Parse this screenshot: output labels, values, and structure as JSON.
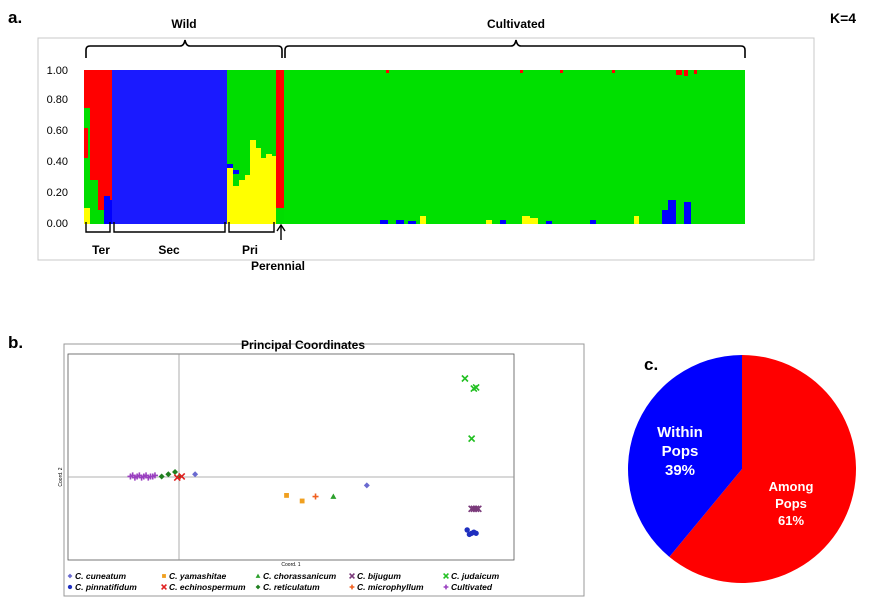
{
  "panels": {
    "a": "a.",
    "b": "b.",
    "c": "c."
  },
  "structure": {
    "k_label": "K=4",
    "group_wild": "Wild",
    "group_cultivated": "Cultivated",
    "sub_ter": "Ter",
    "sub_sec": "Sec",
    "sub_pri": "Pri",
    "sub_perennial": "Perennial",
    "yticks": [
      "0.00",
      "0.20",
      "0.40",
      "0.60",
      "0.80",
      "1.00"
    ]
  },
  "pcoa": {
    "title": "Principal Coordinates",
    "xlabel": "Coord. 1",
    "ylabel": "Coord. 2",
    "legend": [
      {
        "label": "C. cuneatum",
        "color": "#6a6ad0",
        "marker": "diamond"
      },
      {
        "label": "C. yamashitae",
        "color": "#f0a020",
        "marker": "square"
      },
      {
        "label": "C. chorassanicum",
        "color": "#2ca02c",
        "marker": "triangle"
      },
      {
        "label": "C. bijugum",
        "color": "#7a3a7a",
        "marker": "x"
      },
      {
        "label": "C. judaicum",
        "color": "#22c022",
        "marker": "x"
      },
      {
        "label": "C. pinnatifidum",
        "color": "#1f2fbf",
        "marker": "circle"
      },
      {
        "label": "C. echinospermum",
        "color": "#e02020",
        "marker": "x"
      },
      {
        "label": "C. reticulatum",
        "color": "#1f7f1f",
        "marker": "diamond"
      },
      {
        "label": "C. microphyllum",
        "color": "#f06020",
        "marker": "plus"
      },
      {
        "label": "Cultivated",
        "color": "#9a40c0",
        "marker": "plus"
      }
    ]
  },
  "pie": {
    "within_label": "Within",
    "within_label2": "Pops",
    "within_pct": "39%",
    "among_label": "Among",
    "among_label2": "Pops",
    "among_pct": "61%"
  },
  "chart_data": [
    {
      "type": "bar",
      "title": "",
      "subtitle": "K=4",
      "ylim": [
        0,
        1
      ],
      "xlabel": "",
      "ylabel": "",
      "series": [
        {
          "name": "",
          "color": "#0000ff"
        },
        {
          "name": "",
          "color": "#00ff00"
        },
        {
          "name": "",
          "color": "#ffff00"
        },
        {
          "name": "",
          "color": "#ff0000"
        }
      ],
      "groups": [
        {
          "label": "Ter",
          "parent": "Wild",
          "composition": {
            "red": 0.7,
            "green": 0.2,
            "yellow": 0.05,
            "blue": 0.05
          }
        },
        {
          "label": "Sec",
          "parent": "Wild",
          "composition": {
            "blue": 0.99,
            "green": 0.01
          }
        },
        {
          "label": "Pri",
          "parent": "Wild",
          "composition": {
            "green": 0.58,
            "yellow": 0.4,
            "blue": 0.02
          }
        },
        {
          "label": "Perennial",
          "parent": "Wild",
          "composition": {
            "red": 0.9,
            "green": 0.1
          }
        },
        {
          "label": "Cultivated",
          "parent": "Cultivated",
          "composition": {
            "green": 0.97,
            "blue": 0.015,
            "yellow": 0.01,
            "red": 0.005
          }
        }
      ]
    },
    {
      "type": "scatter",
      "title": "Principal Coordinates",
      "xlabel": "Coord. 1",
      "ylabel": "Coord. 2",
      "xlim": [
        -1.0,
        1.0
      ],
      "ylim": [
        -0.75,
        1.1
      ],
      "grid": false,
      "legend_position": "bottom",
      "series": [
        {
          "name": "Cultivated",
          "points": [
            [
              -0.72,
              0.0
            ],
            [
              -0.71,
              0.01
            ],
            [
              -0.7,
              -0.01
            ],
            [
              -0.69,
              0.0
            ],
            [
              -0.68,
              0.01
            ],
            [
              -0.67,
              -0.01
            ],
            [
              -0.66,
              0.0
            ],
            [
              -0.65,
              0.01
            ],
            [
              -0.64,
              -0.01
            ],
            [
              -0.63,
              0.0
            ],
            [
              -0.62,
              0.0
            ],
            [
              -0.61,
              0.01
            ]
          ]
        },
        {
          "name": "C. reticulatum",
          "points": [
            [
              -0.58,
              0.0
            ],
            [
              -0.55,
              0.02
            ],
            [
              -0.52,
              0.04
            ],
            [
              -0.5,
              0.0
            ]
          ]
        },
        {
          "name": "C. echinospermum",
          "points": [
            [
              -0.51,
              -0.01
            ],
            [
              -0.49,
              0.0
            ]
          ]
        },
        {
          "name": "C. cuneatum",
          "points": [
            [
              -0.43,
              0.02
            ]
          ]
        },
        {
          "name": "C. yamashitae",
          "points": [
            [
              -0.02,
              -0.17
            ],
            [
              0.05,
              -0.22
            ]
          ]
        },
        {
          "name": "C. microphyllum",
          "points": [
            [
              0.11,
              -0.18
            ]
          ]
        },
        {
          "name": "C. chorassanicum",
          "points": [
            [
              0.19,
              -0.18
            ]
          ]
        },
        {
          "name": "C. cuneatum",
          "points": [
            [
              0.34,
              -0.08
            ]
          ]
        },
        {
          "name": "C. judaicum",
          "points": [
            [
              0.78,
              0.88
            ],
            [
              0.82,
              0.79
            ],
            [
              0.83,
              0.8
            ],
            [
              0.81,
              0.34
            ]
          ]
        },
        {
          "name": "C. bijugum",
          "points": [
            [
              0.81,
              -0.29
            ],
            [
              0.82,
              -0.29
            ],
            [
              0.83,
              -0.29
            ],
            [
              0.84,
              -0.29
            ]
          ]
        },
        {
          "name": "C. pinnatifidum",
          "points": [
            [
              0.79,
              -0.48
            ],
            [
              0.8,
              -0.52
            ],
            [
              0.81,
              -0.51
            ],
            [
              0.82,
              -0.5
            ],
            [
              0.83,
              -0.51
            ]
          ]
        }
      ]
    },
    {
      "type": "pie",
      "categories": [
        "Within Pops",
        "Among Pops"
      ],
      "values": [
        39,
        61
      ],
      "colors": [
        "#0000ff",
        "#ff0000"
      ]
    }
  ]
}
